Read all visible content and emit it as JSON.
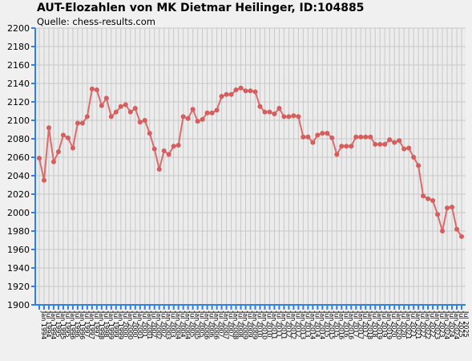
{
  "title": "AUT-Elozahlen von MK Dietmar Heilinger, ID:104885",
  "subtitle": "Quelle: chess-results.com",
  "colors": {
    "line": "#dd6b6b",
    "point": "#d45d5d",
    "axis": "#2f80ed",
    "grid": "#c8c8c8",
    "plot_bg": "#ececec"
  },
  "chart_data": {
    "type": "line",
    "ylim": [
      1900,
      2200
    ],
    "y_ticks": [
      1900,
      1920,
      1940,
      1960,
      1980,
      2000,
      2020,
      2040,
      2060,
      2080,
      2100,
      2120,
      2140,
      2160,
      2180,
      2200
    ],
    "grid": true,
    "x_first": "Jan 1994",
    "x_last": "Jul 2025",
    "series": [
      {
        "values": [
          2059,
          2035,
          2092,
          2055,
          2066,
          2084,
          2081,
          2070,
          2097,
          2097,
          2104,
          2134,
          2133,
          2116,
          2124,
          2104,
          2109,
          2115,
          2117,
          2109,
          2113,
          2098,
          2100,
          2086,
          2069,
          2047,
          2067,
          2063,
          2072,
          2073,
          2104,
          2102,
          2112,
          2099,
          2101,
          2108,
          2108,
          2111,
          2126,
          2128,
          2128,
          2133,
          2135,
          2132,
          2132,
          2131,
          2115,
          2109,
          2109,
          2107,
          2113,
          2104,
          2104,
          2105,
          2104,
          2082,
          2082,
          2076,
          2084,
          2086,
          2086,
          2081,
          2063,
          2072,
          2072,
          2072,
          2082,
          2082,
          2082,
          2082,
          2074,
          2074,
          2074,
          2079,
          2076,
          2078,
          2069,
          2070,
          2060,
          2051,
          2018,
          2015,
          2013,
          1998,
          1980,
          2005,
          2006,
          1982,
          1974
        ]
      }
    ]
  }
}
